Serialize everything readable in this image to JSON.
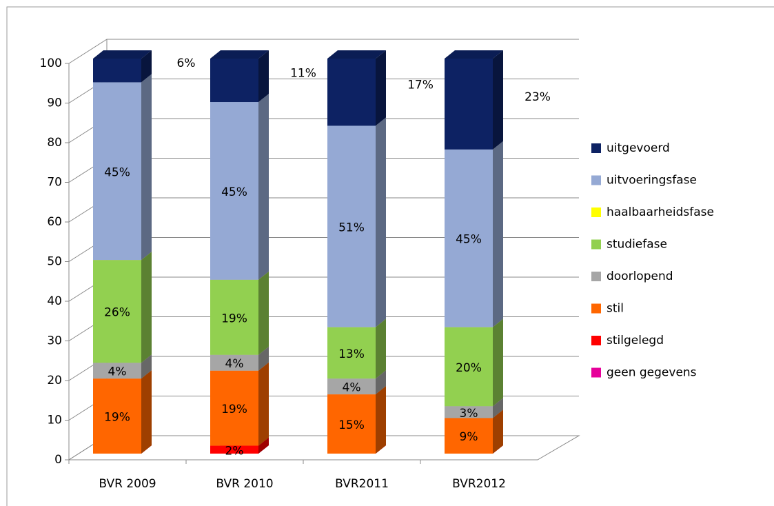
{
  "chart_data": {
    "type": "bar",
    "stacked": true,
    "three_d": true,
    "categories": [
      "BVR 2009",
      "BVR 2010",
      "BVR2011",
      "BVR2012"
    ],
    "series": [
      {
        "name": "geen gegevens",
        "color": "#e6009a",
        "values": [
          0,
          0,
          0,
          0
        ],
        "value_labels": [
          null,
          null,
          null,
          null
        ]
      },
      {
        "name": "stilgelegd",
        "color": "#ff0000",
        "values": [
          0,
          2,
          0,
          0
        ],
        "value_labels": [
          null,
          "2%",
          null,
          null
        ]
      },
      {
        "name": "stil",
        "color": "#ff6600",
        "values": [
          19,
          19,
          15,
          9
        ],
        "value_labels": [
          "19%",
          "19%",
          "15%",
          "9%"
        ]
      },
      {
        "name": "doorlopend",
        "color": "#a6a6a6",
        "values": [
          4,
          4,
          4,
          3
        ],
        "value_labels": [
          "4%",
          "4%",
          "4%",
          "3%"
        ]
      },
      {
        "name": "studiefase",
        "color": "#92d050",
        "values": [
          26,
          19,
          13,
          20
        ],
        "value_labels": [
          "26%",
          "19%",
          "13%",
          "20%"
        ]
      },
      {
        "name": "haalbaarheidsfase",
        "color": "#ffff00",
        "values": [
          0,
          0,
          0,
          0
        ],
        "value_labels": [
          null,
          null,
          null,
          null
        ]
      },
      {
        "name": "uitvoeringsfase",
        "color": "#95a9d4",
        "values": [
          45,
          45,
          51,
          45
        ],
        "value_labels": [
          "45%",
          "45%",
          "51%",
          "45%"
        ]
      },
      {
        "name": "uitgevoerd",
        "color": "#0d2263",
        "values": [
          6,
          11,
          17,
          23
        ],
        "value_labels": [
          "6%",
          "11%",
          "17%",
          "23%"
        ]
      }
    ],
    "ylim": [
      0,
      100
    ],
    "yticks": [
      0,
      10,
      20,
      30,
      40,
      50,
      60,
      70,
      80,
      90,
      100
    ],
    "grid": true,
    "legend": "right"
  }
}
